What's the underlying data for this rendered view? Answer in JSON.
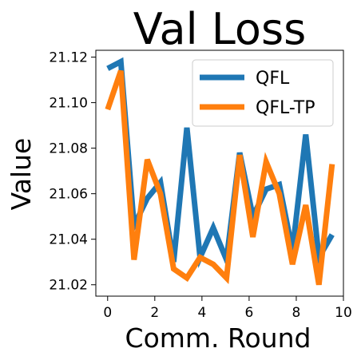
{
  "chart_data": {
    "type": "line",
    "title": "Val Loss",
    "xlabel": "Comm. Round",
    "ylabel": "Value",
    "xlim": [
      -0.5,
      10
    ],
    "ylim": [
      21.015,
      21.123
    ],
    "xticks": [
      "0",
      "2",
      "4",
      "6",
      "8",
      "10"
    ],
    "yticks": [
      "21.02",
      "21.04",
      "21.06",
      "21.08",
      "21.10",
      "21.12"
    ],
    "legend_position": "top-right",
    "grid": false,
    "series": [
      {
        "name": "QFL",
        "color": "#1f77b4",
        "x": [
          0,
          0.56,
          1.12,
          1.68,
          2.24,
          2.8,
          3.36,
          3.92,
          4.48,
          5.04,
          5.6,
          6.16,
          6.72,
          7.28,
          7.84,
          8.4,
          8.96,
          9.52
        ],
        "y": [
          21.115,
          21.118,
          21.046,
          21.058,
          21.065,
          21.03,
          21.089,
          21.032,
          21.045,
          21.031,
          21.078,
          21.05,
          21.062,
          21.064,
          21.035,
          21.086,
          21.032,
          21.042
        ]
      },
      {
        "name": "QFL-TP",
        "color": "#ff7f0e",
        "x": [
          0,
          0.56,
          1.12,
          1.68,
          2.24,
          2.8,
          3.36,
          3.92,
          4.48,
          5.04,
          5.6,
          6.16,
          6.72,
          7.28,
          7.84,
          8.4,
          8.96,
          9.52
        ],
        "y": [
          21.097,
          21.114,
          21.031,
          21.075,
          21.06,
          21.027,
          21.023,
          21.032,
          21.029,
          21.023,
          21.077,
          21.041,
          21.074,
          21.06,
          21.029,
          21.055,
          21.02,
          21.073
        ]
      }
    ]
  }
}
